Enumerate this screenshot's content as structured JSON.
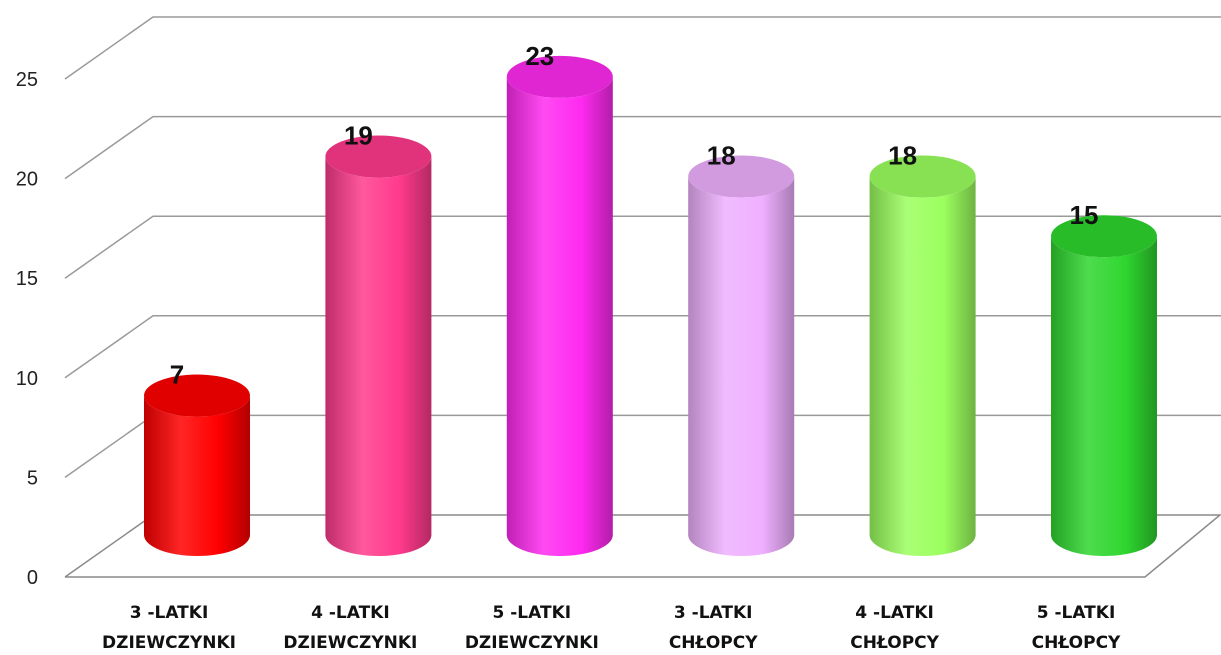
{
  "chart_data": {
    "type": "bar",
    "style": "3d-cylinder",
    "categories": [
      [
        "3 -LATKI",
        "DZIEWCZYNKI"
      ],
      [
        "4 -LATKI",
        "DZIEWCZYNKI"
      ],
      [
        "5 -LATKI",
        "DZIEWCZYNKI"
      ],
      [
        "3 -LATKI",
        "CHŁOPCY"
      ],
      [
        "4 -LATKI",
        "CHŁOPCY"
      ],
      [
        "5 -LATKI",
        "CHŁOPCY"
      ]
    ],
    "values": [
      7,
      19,
      23,
      18,
      18,
      15
    ],
    "data_labels": [
      "7",
      "19",
      "23",
      "18",
      "18",
      "15"
    ],
    "colors": [
      "#ff0000",
      "#ff3a8c",
      "#ff2af0",
      "#efb0ff",
      "#9bff5e",
      "#2fd62f"
    ],
    "yticks": [
      "0",
      "5",
      "10",
      "15",
      "20",
      "25"
    ],
    "ylim": [
      0,
      25
    ],
    "grid": true,
    "title": "",
    "xlabel": "",
    "ylabel": ""
  }
}
